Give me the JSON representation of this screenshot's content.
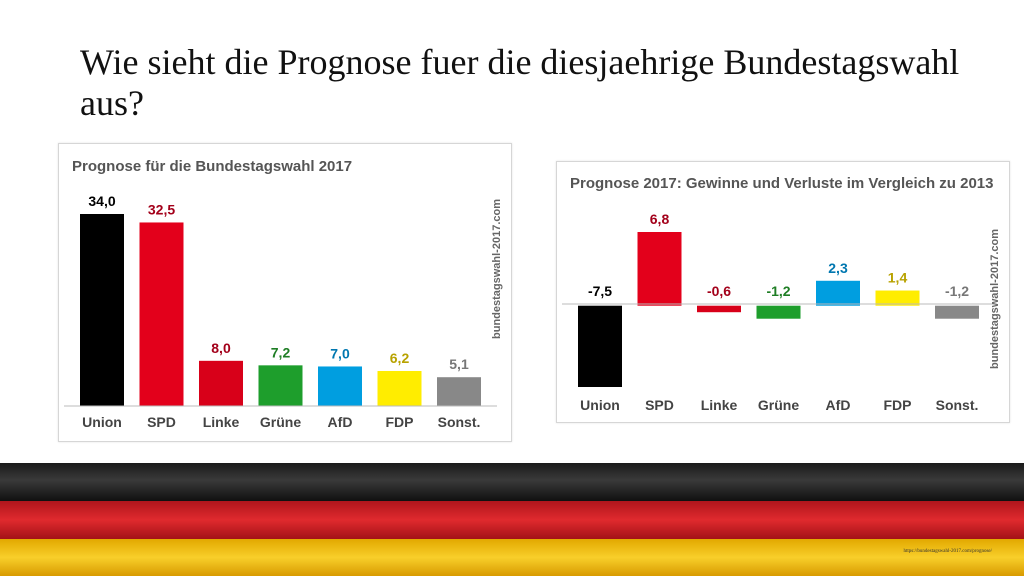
{
  "slide": {
    "title": "Wie sieht die Prognose fuer die diesjaehrige Bundestagswahl aus?",
    "source_url": "https://bundestagswahl-2017.com/prognose/"
  },
  "colors": {
    "Union": "#000000",
    "SPD": "#e3001b",
    "Linke": "#d80019",
    "Grüne": "#1e9e2c",
    "AfD": "#009ee0",
    "FDP": "#ffed00",
    "Sonst.": "#888888",
    "label_colors": [
      "#000000",
      "#a3001a",
      "#a3001a",
      "#1e7d24",
      "#0077b0",
      "#b8a200",
      "#777777"
    ]
  },
  "chart_data": [
    {
      "type": "bar",
      "title": "Prognose für die Bundestagswahl 2017",
      "watermark": "bundestagswahl-2017.com",
      "categories": [
        "Union",
        "SPD",
        "Linke",
        "Grüne",
        "AfD",
        "FDP",
        "Sonst."
      ],
      "values": [
        34.0,
        32.5,
        8.0,
        7.2,
        7.0,
        6.2,
        5.1
      ],
      "value_labels": [
        "34,0",
        "32,5",
        "8,0",
        "7,2",
        "7,0",
        "6,2",
        "5,1"
      ],
      "ylim": [
        0,
        34
      ],
      "grid": false
    },
    {
      "type": "bar",
      "title": "Prognose 2017: Gewinne und Verluste im Vergleich zu 2013",
      "watermark": "bundestagswahl-2017.com",
      "categories": [
        "Union",
        "SPD",
        "Linke",
        "Grüne",
        "AfD",
        "FDP",
        "Sonst."
      ],
      "values": [
        -7.5,
        6.8,
        -0.6,
        -1.2,
        2.3,
        1.4,
        -1.2
      ],
      "value_labels": [
        "-7,5",
        "6,8",
        "-0,6",
        "-1,2",
        "2,3",
        "1,4",
        "-1,2"
      ],
      "ylim": [
        -7.5,
        6.8
      ],
      "grid": false
    }
  ]
}
